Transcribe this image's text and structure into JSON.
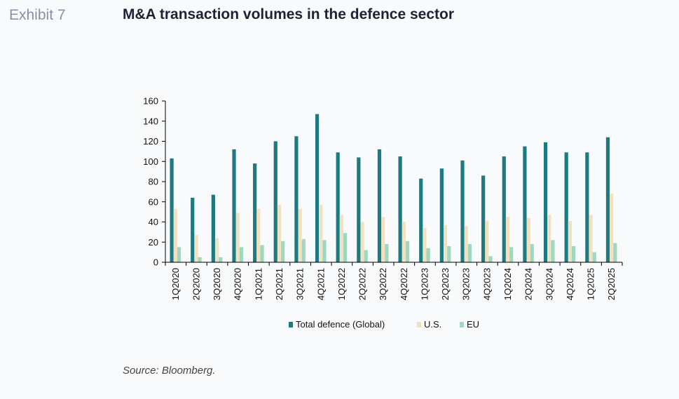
{
  "header": {
    "exhibit": "Exhibit 7",
    "title": "M&A transaction volumes in the defence sector"
  },
  "footer": {
    "source": "Source: Bloomberg."
  },
  "colors": {
    "total": "#1d7a80",
    "us": "#f0e2c0",
    "eu": "#9fd8bf",
    "axis": "#000000"
  },
  "chart_data": {
    "type": "bar",
    "categories": [
      "1Q2020",
      "2Q2020",
      "3Q2020",
      "4Q2020",
      "1Q2021",
      "2Q2021",
      "3Q2021",
      "4Q2021",
      "1Q2022",
      "2Q2022",
      "3Q2022",
      "4Q2022",
      "1Q2023",
      "2Q2023",
      "3Q2023",
      "4Q2023",
      "1Q2024",
      "2Q2024",
      "3Q2024",
      "4Q2024",
      "1Q2025",
      "2Q2025"
    ],
    "series": [
      {
        "name": "Total defence (Global)",
        "values": [
          103,
          64,
          67,
          112,
          98,
          120,
          125,
          147,
          109,
          104,
          112,
          105,
          83,
          93,
          101,
          86,
          105,
          115,
          119,
          109,
          109,
          124
        ]
      },
      {
        "name": "U.S.",
        "values": [
          53,
          27,
          24,
          49,
          53,
          57,
          53,
          57,
          47,
          40,
          45,
          40,
          34,
          37,
          36,
          41,
          45,
          44,
          47,
          41,
          47,
          68
        ]
      },
      {
        "name": "EU",
        "values": [
          15,
          5,
          5,
          15,
          17,
          21,
          23,
          22,
          29,
          12,
          18,
          21,
          14,
          16,
          18,
          6,
          15,
          18,
          22,
          16,
          10,
          19
        ]
      }
    ],
    "yticks": [
      0,
      20,
      40,
      60,
      80,
      100,
      120,
      140,
      160
    ],
    "ylim": [
      0,
      160
    ],
    "legend_position": "bottom",
    "grid": false
  }
}
